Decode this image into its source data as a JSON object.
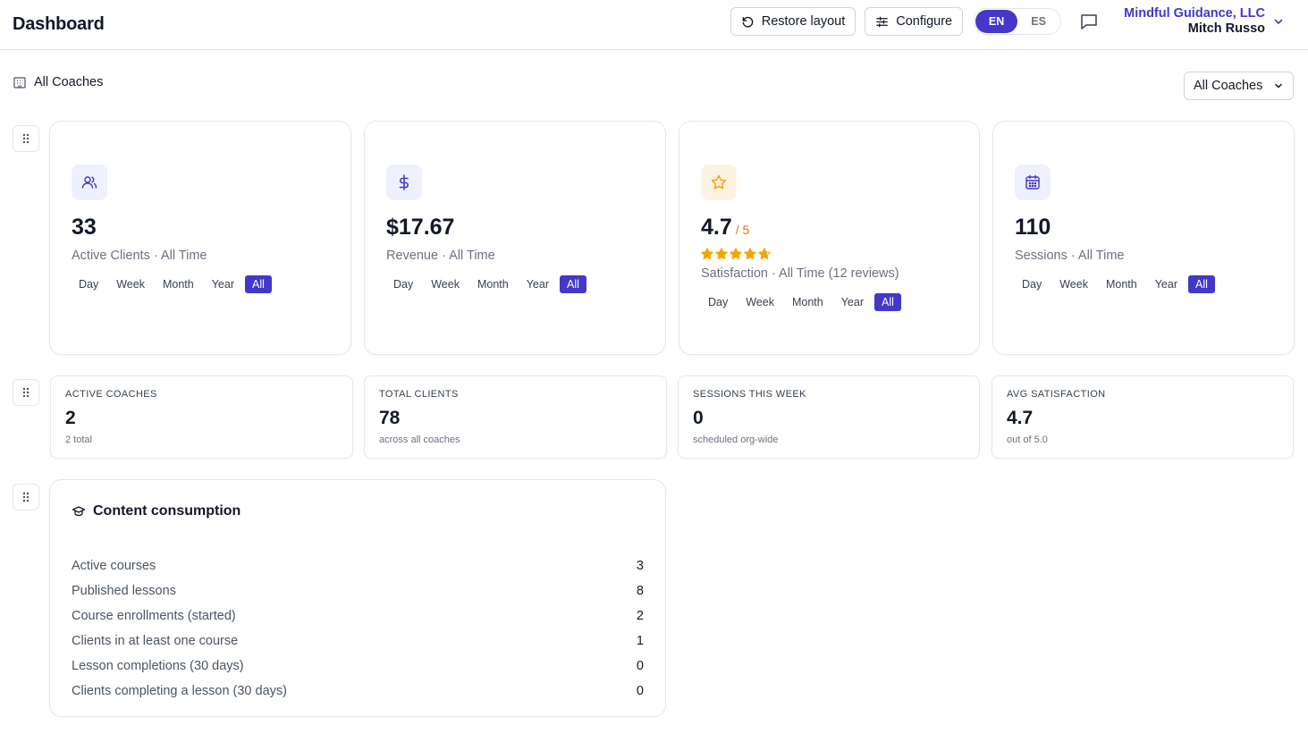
{
  "header": {
    "title": "Dashboard",
    "restore_label": "Restore layout",
    "configure_label": "Configure",
    "lang_en": "EN",
    "lang_es": "ES",
    "org_name": "Mindful Guidance, LLC",
    "user_name": "Mitch Russo"
  },
  "scope": {
    "label": "All Coaches",
    "select_value": "All Coaches"
  },
  "periods": [
    "Day",
    "Week",
    "Month",
    "Year",
    "All"
  ],
  "kpis": [
    {
      "icon": "users-icon",
      "value": "33",
      "label": "Active Clients · All Time",
      "active_period": "All"
    },
    {
      "icon": "dollar-icon",
      "value": "$17.67",
      "label": "Revenue · All Time",
      "active_period": "All"
    },
    {
      "icon": "star-icon",
      "value": "4.7",
      "suffix": "/ 5",
      "rating": 4.7,
      "rating_max": 5,
      "label": "Satisfaction · All Time (12 reviews)",
      "active_period": "All"
    },
    {
      "icon": "calendar-icon",
      "value": "110",
      "label": "Sessions · All Time",
      "active_period": "All"
    }
  ],
  "stats": [
    {
      "title": "ACTIVE COACHES",
      "value": "2",
      "sub": "2 total"
    },
    {
      "title": "TOTAL CLIENTS",
      "value": "78",
      "sub": "across all coaches"
    },
    {
      "title": "SESSIONS THIS WEEK",
      "value": "0",
      "sub": "scheduled org-wide"
    },
    {
      "title": "AVG SATISFACTION",
      "value": "4.7",
      "sub": "out of 5.0"
    }
  ],
  "content": {
    "title": "Content consumption",
    "rows": [
      {
        "label": "Active courses",
        "value": "3"
      },
      {
        "label": "Published lessons",
        "value": "8"
      },
      {
        "label": "Course enrollments (started)",
        "value": "2"
      },
      {
        "label": "Clients in at least one course",
        "value": "1"
      },
      {
        "label": "Lesson completions (30 days)",
        "value": "0"
      },
      {
        "label": "Clients completing a lesson (30 days)",
        "value": "0"
      }
    ]
  },
  "colors": {
    "accent": "#4338ca",
    "icon_bg": "#eef0fb",
    "star_bg": "#fdf3e2",
    "star": "#f5a400"
  }
}
